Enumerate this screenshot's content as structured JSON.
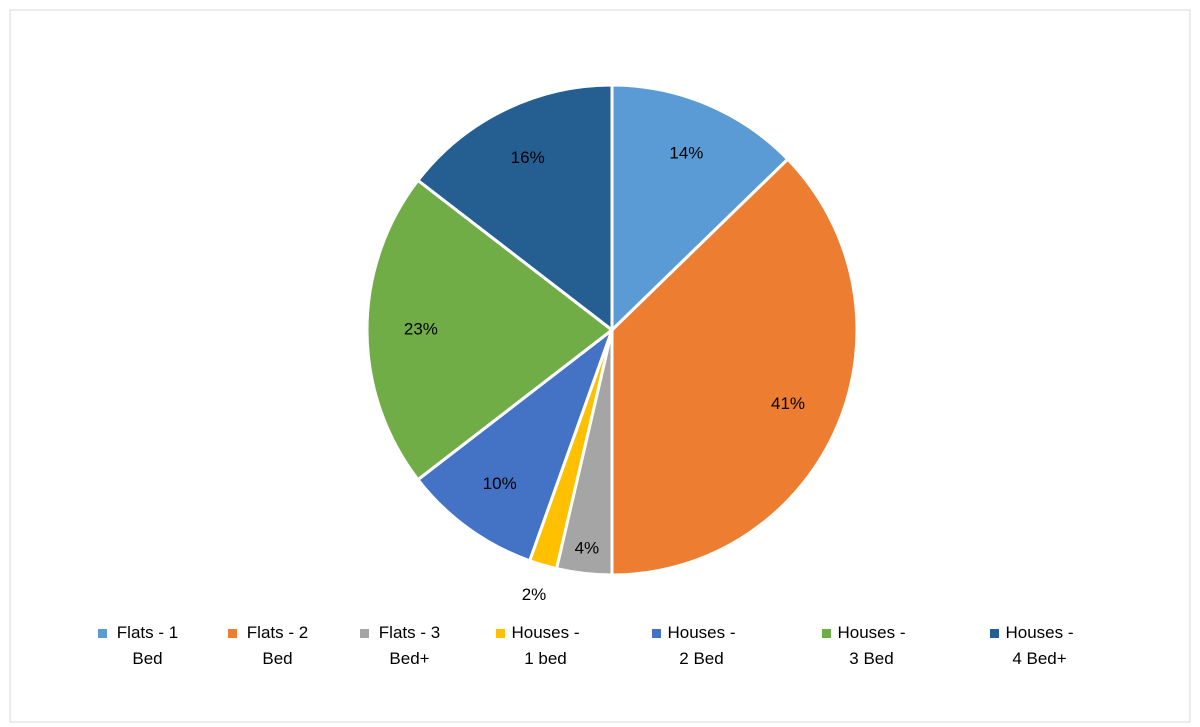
{
  "chart_data": {
    "type": "pie",
    "categories": [
      "Flats - 1 Bed",
      "Flats - 2 Bed",
      "Flats - 3 Bed+",
      "Houses - 1 bed",
      "Houses - 2 Bed",
      "Houses - 3 Bed",
      "Houses - 4 Bed+"
    ],
    "values": [
      14,
      41,
      4,
      2,
      10,
      23,
      16
    ],
    "value_labels": [
      "14%",
      "41%",
      "4%",
      "2%",
      "10%",
      "23%",
      "16%"
    ],
    "colors": [
      "#5b9bd5",
      "#ed7d31",
      "#a5a5a5",
      "#ffc000",
      "#4472c4",
      "#70ad47",
      "#255e91"
    ],
    "legend": "bottom"
  }
}
